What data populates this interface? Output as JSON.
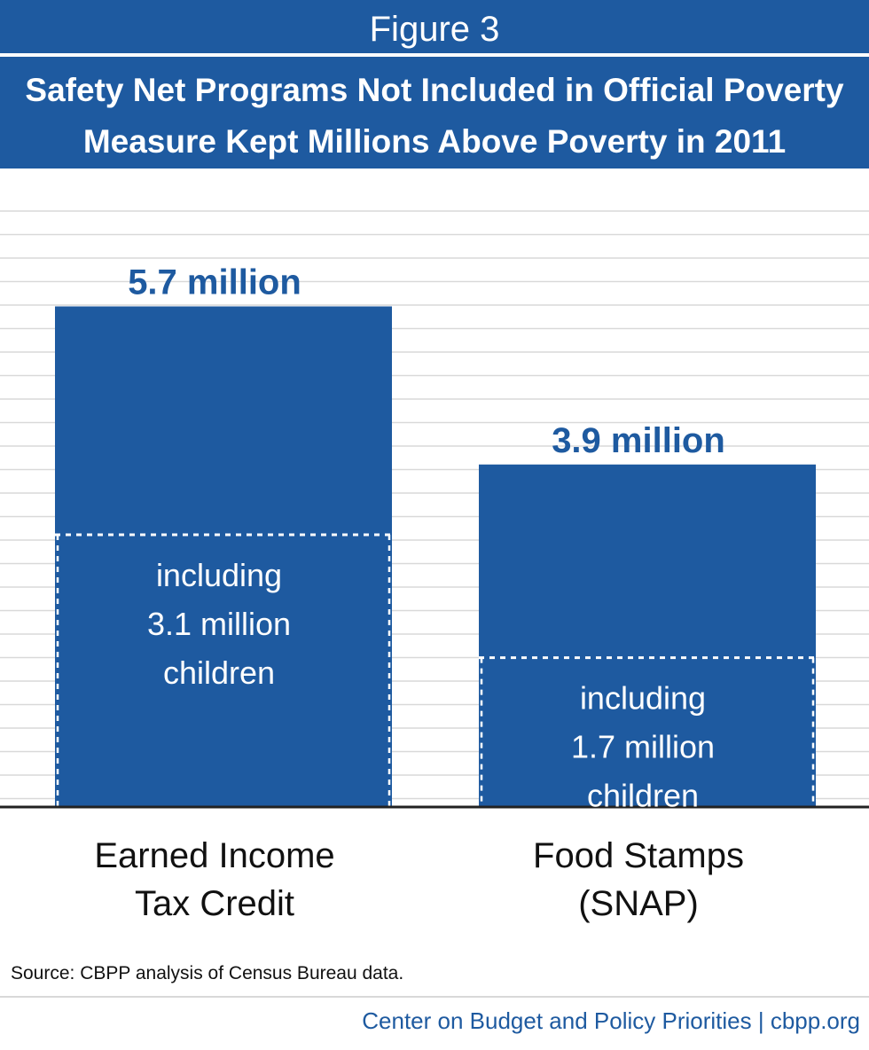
{
  "figure_label": "Figure 3",
  "title_lines": [
    "Safety Net Programs Not Included in Official Poverty",
    "Measure Kept Millions Above Poverty in 2011"
  ],
  "source": "Source: CBPP analysis of Census Bureau data.",
  "credit": "Center on Budget and Policy Priorities | cbpp.org",
  "colors": {
    "header_band": "#1e5aa0",
    "bar": "#1e5aa0",
    "value_text": "#1e5aa0",
    "grid": "#d9d9d9"
  },
  "chart_data": {
    "type": "bar",
    "title": "Safety Net Programs Not Included in Official Poverty Measure Kept Millions Above Poverty in 2011",
    "categories": [
      [
        "Earned Income",
        "Tax Credit"
      ],
      [
        "Food Stamps",
        "(SNAP)"
      ]
    ],
    "series": [
      {
        "name": "",
        "values": [
          5.7,
          3.9
        ]
      }
    ],
    "children_values": [
      3.1,
      1.7
    ],
    "value_labels": [
      "5.7 million",
      "3.9 million"
    ],
    "inner_labels": [
      [
        "including",
        "3.1 million",
        "children"
      ],
      [
        "including",
        "1.7 million",
        "children"
      ]
    ],
    "xlabel": "",
    "ylabel": "",
    "ylim": [
      0,
      7.25
    ],
    "grid": true,
    "legend": "none"
  }
}
